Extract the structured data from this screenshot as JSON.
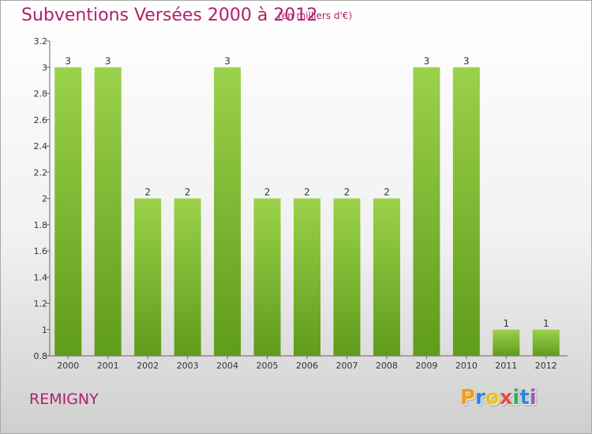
{
  "header": {
    "title": "Subventions Versées 2000 à 2012",
    "unit": "(en milliers d'€)"
  },
  "footer": {
    "place": "REMIGNY",
    "brand": "Proxiti"
  },
  "colors": {
    "title": "#b0206a",
    "bar_light": "#9bd14b",
    "bar_dark": "#5f9c1a",
    "brand_letters": [
      "#f39c12",
      "#2e86de",
      "#f1c40f",
      "#e74c3c",
      "#27ae60",
      "#2e86de",
      "#9b59b6"
    ]
  },
  "chart_data": {
    "type": "bar",
    "title": "Subventions Versées 2000 à 2012",
    "categories": [
      "2000",
      "2001",
      "2002",
      "2003",
      "2004",
      "2005",
      "2006",
      "2007",
      "2008",
      "2009",
      "2010",
      "2011",
      "2012"
    ],
    "values": [
      3,
      3,
      2,
      2,
      3,
      2,
      2,
      2,
      2,
      3,
      3,
      1,
      1
    ],
    "data_labels": [
      "3",
      "3",
      "2",
      "2",
      "3",
      "2",
      "2",
      "2",
      "2",
      "3",
      "3",
      "1",
      "1"
    ],
    "ylim": [
      0.8,
      3.2
    ],
    "yticks": [
      0.8,
      1,
      1.2,
      1.4,
      1.6,
      1.8,
      2,
      2.2,
      2.4,
      2.6,
      2.8,
      3,
      3.2
    ],
    "ytick_labels": [
      "0.8",
      "1",
      "1.2",
      "1.4",
      "1.6",
      "1.8",
      "2",
      "2.2",
      "2.4",
      "2.6",
      "2.8",
      "3",
      "3.2"
    ],
    "grid": false,
    "legend": "none"
  }
}
